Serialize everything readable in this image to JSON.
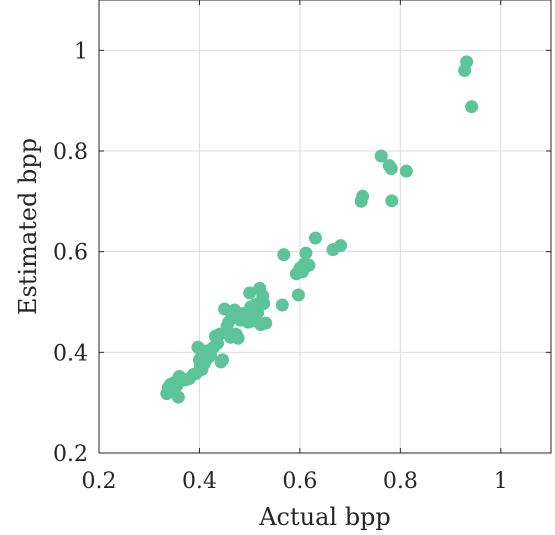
{
  "chart_data": {
    "type": "scatter",
    "title": "",
    "xlabel": "Actual bpp",
    "ylabel": "Estimated bpp",
    "xlim": [
      0.2,
      1.1
    ],
    "ylim": [
      0.2,
      1.1
    ],
    "x_ticks": [
      0.2,
      0.4,
      0.6,
      0.8,
      1.0
    ],
    "x_tick_labels": [
      "0.2",
      "0.4",
      "0.6",
      "0.8",
      "1"
    ],
    "y_ticks": [
      0.2,
      0.4,
      0.6,
      0.8,
      1.0
    ],
    "y_tick_labels": [
      "0.2",
      "0.4",
      "0.6",
      "0.8",
      "1"
    ],
    "grid": true,
    "marker_color": "#5CC39A",
    "series": [
      {
        "points": [
          [
            0.335,
            0.318
          ],
          [
            0.338,
            0.33
          ],
          [
            0.342,
            0.336
          ],
          [
            0.345,
            0.325
          ],
          [
            0.35,
            0.34
          ],
          [
            0.355,
            0.334
          ],
          [
            0.358,
            0.311
          ],
          [
            0.36,
            0.352
          ],
          [
            0.365,
            0.345
          ],
          [
            0.372,
            0.345
          ],
          [
            0.38,
            0.348
          ],
          [
            0.388,
            0.356
          ],
          [
            0.393,
            0.358
          ],
          [
            0.397,
            0.41
          ],
          [
            0.4,
            0.385
          ],
          [
            0.402,
            0.372
          ],
          [
            0.405,
            0.366
          ],
          [
            0.405,
            0.397
          ],
          [
            0.41,
            0.378
          ],
          [
            0.413,
            0.403
          ],
          [
            0.418,
            0.39
          ],
          [
            0.422,
            0.395
          ],
          [
            0.428,
            0.41
          ],
          [
            0.432,
            0.432
          ],
          [
            0.436,
            0.418
          ],
          [
            0.44,
            0.436
          ],
          [
            0.443,
            0.381
          ],
          [
            0.446,
            0.385
          ],
          [
            0.45,
            0.486
          ],
          [
            0.455,
            0.452
          ],
          [
            0.458,
            0.46
          ],
          [
            0.462,
            0.43
          ],
          [
            0.465,
            0.47
          ],
          [
            0.47,
            0.484
          ],
          [
            0.473,
            0.436
          ],
          [
            0.477,
            0.428
          ],
          [
            0.482,
            0.464
          ],
          [
            0.486,
            0.477
          ],
          [
            0.492,
            0.47
          ],
          [
            0.497,
            0.46
          ],
          [
            0.5,
            0.518
          ],
          [
            0.502,
            0.49
          ],
          [
            0.505,
            0.462
          ],
          [
            0.508,
            0.486
          ],
          [
            0.512,
            0.495
          ],
          [
            0.516,
            0.479
          ],
          [
            0.52,
            0.527
          ],
          [
            0.522,
            0.455
          ],
          [
            0.526,
            0.512
          ],
          [
            0.528,
            0.497
          ],
          [
            0.532,
            0.458
          ],
          [
            0.565,
            0.494
          ],
          [
            0.568,
            0.594
          ],
          [
            0.593,
            0.556
          ],
          [
            0.597,
            0.514
          ],
          [
            0.6,
            0.567
          ],
          [
            0.605,
            0.56
          ],
          [
            0.608,
            0.575
          ],
          [
            0.612,
            0.597
          ],
          [
            0.618,
            0.573
          ],
          [
            0.631,
            0.627
          ],
          [
            0.666,
            0.604
          ],
          [
            0.681,
            0.612
          ],
          [
            0.722,
            0.7
          ],
          [
            0.725,
            0.71
          ],
          [
            0.762,
            0.79
          ],
          [
            0.778,
            0.771
          ],
          [
            0.782,
            0.765
          ],
          [
            0.783,
            0.701
          ],
          [
            0.812,
            0.76
          ],
          [
            0.928,
            0.96
          ],
          [
            0.932,
            0.977
          ],
          [
            0.942,
            0.888
          ]
        ]
      }
    ]
  }
}
